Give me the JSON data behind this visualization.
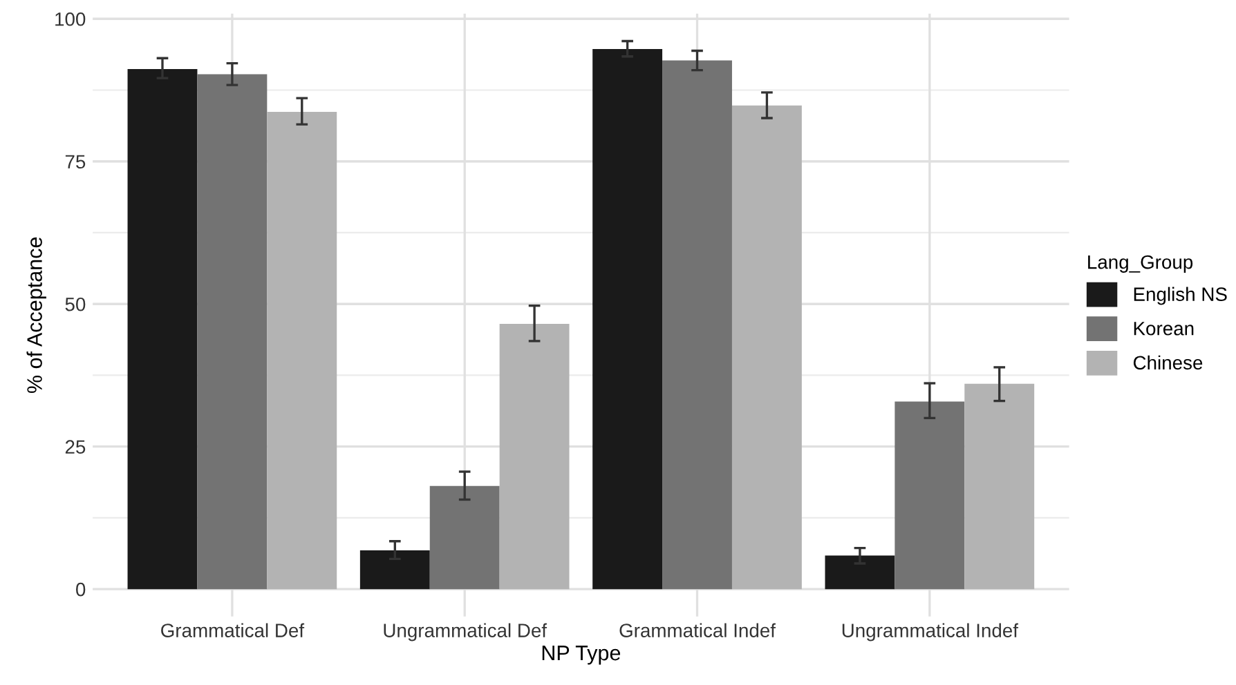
{
  "chart_data": {
    "type": "bar",
    "xlabel": "NP Type",
    "ylabel": "% of Acceptance",
    "legend_title": "Lang_Group",
    "categories": [
      "Grammatical Def",
      "Ungrammatical Def",
      "Grammatical Indef",
      "Ungrammatical Indef"
    ],
    "series": [
      {
        "name": "English NS",
        "color": "#1a1a1a",
        "values": [
          91.2,
          6.8,
          94.7,
          5.9
        ],
        "errors": [
          [
            89.6,
            93.1
          ],
          [
            5.3,
            8.4
          ],
          [
            93.4,
            96.1
          ],
          [
            4.5,
            7.2
          ]
        ]
      },
      {
        "name": "Korean",
        "color": "#737373",
        "values": [
          90.3,
          18.1,
          92.7,
          32.9
        ],
        "errors": [
          [
            88.4,
            92.2
          ],
          [
            15.7,
            20.6
          ],
          [
            91.0,
            94.4
          ],
          [
            30.0,
            36.1
          ]
        ]
      },
      {
        "name": "Chinese",
        "color": "#b3b3b3",
        "values": [
          83.7,
          46.5,
          84.8,
          36.0
        ],
        "errors": [
          [
            81.5,
            86.1
          ],
          [
            43.5,
            49.7
          ],
          [
            82.6,
            87.1
          ],
          [
            33.0,
            38.9
          ]
        ]
      }
    ],
    "ylim": [
      -4.8,
      100.9
    ],
    "yticks": [
      0,
      25,
      50,
      75,
      100
    ],
    "grid": true,
    "legend": "right"
  }
}
